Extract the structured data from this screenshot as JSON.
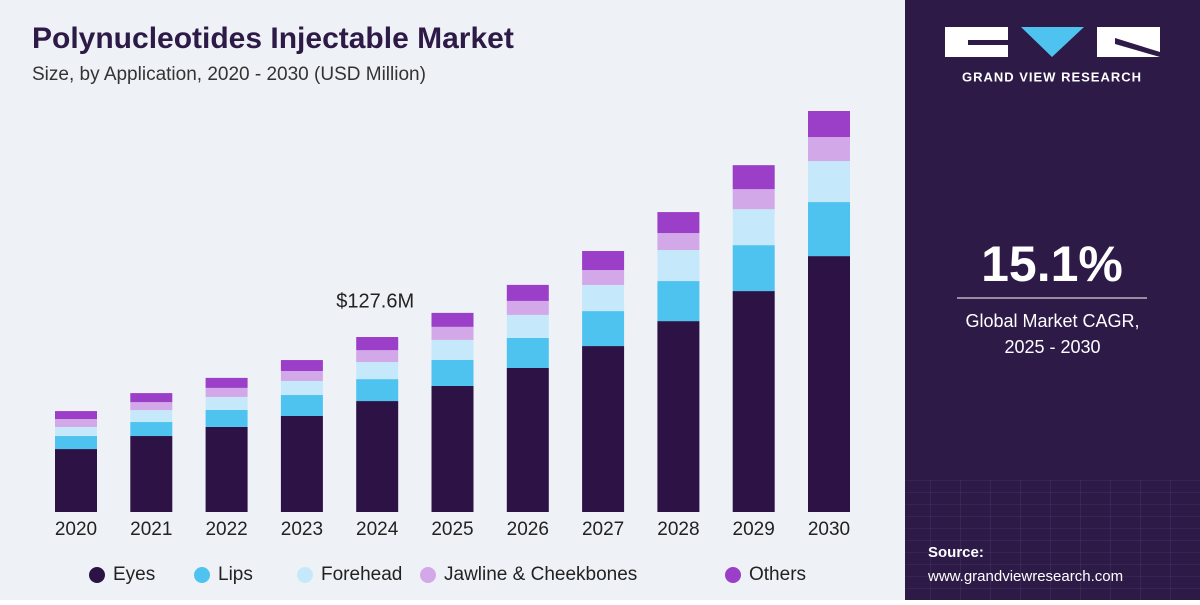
{
  "chart_data": {
    "type": "stacked_bar",
    "title": "Polynucleotides Injectable Market",
    "subtitle": "Size, by Application, 2020 - 2030 (USD Million)",
    "categories": [
      "2020",
      "2021",
      "2022",
      "2023",
      "2024",
      "2025",
      "2026",
      "2027",
      "2028",
      "2029",
      "2030"
    ],
    "series": [
      {
        "name": "Eyes",
        "color": "#2d1345",
        "values": [
          45.9,
          55.4,
          62.0,
          70.0,
          80.9,
          91.9,
          105.0,
          121.0,
          139.2,
          161.1,
          186.6
        ]
      },
      {
        "name": "Lips",
        "color": "#4ec3f0",
        "values": [
          9.5,
          10.2,
          12.4,
          15.3,
          16.0,
          19.0,
          21.9,
          25.5,
          29.2,
          33.5,
          39.4
        ]
      },
      {
        "name": "Forehead",
        "color": "#c5e9fa",
        "values": [
          6.6,
          8.7,
          9.5,
          10.2,
          12.4,
          14.6,
          16.8,
          19.0,
          22.6,
          26.2,
          29.9
        ]
      },
      {
        "name": "Jawline & Cheekbones",
        "color": "#d3a8e8",
        "values": [
          5.8,
          5.8,
          6.6,
          7.3,
          8.7,
          9.5,
          10.2,
          10.9,
          12.4,
          14.6,
          17.5
        ]
      },
      {
        "name": "Others",
        "color": "#9b3fc9",
        "values": [
          5.8,
          6.6,
          7.3,
          8.0,
          9.6,
          10.2,
          11.7,
          13.9,
          15.3,
          17.5,
          19.0
        ]
      }
    ],
    "annotation": {
      "text": "$127.6M",
      "category": "2024",
      "value": 127.6
    }
  },
  "brand": "GRAND VIEW RESEARCH",
  "cagr": {
    "value": "15.1%",
    "label": "Global Market CAGR, 2025 - 2030"
  },
  "source": {
    "label": "Source:",
    "url": "www.grandviewresearch.com"
  }
}
